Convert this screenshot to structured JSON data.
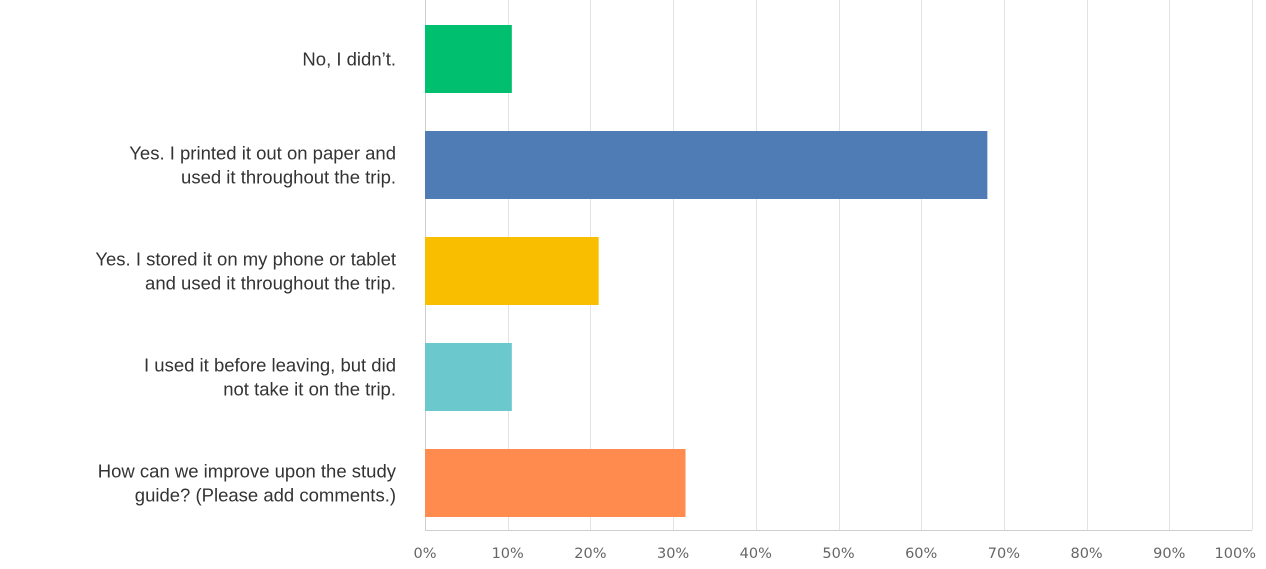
{
  "chart_data": {
    "type": "bar",
    "orientation": "horizontal",
    "categories": [
      [
        "No, I didn’t."
      ],
      [
        "Yes. I printed it out on paper and",
        "used it throughout the trip."
      ],
      [
        "Yes. I stored it on my phone or tablet",
        "and used it throughout the trip."
      ],
      [
        "I used it before leaving, but did",
        "not take it on the trip."
      ],
      [
        "How can we improve upon the study",
        "guide? (Please add comments.)"
      ]
    ],
    "values": [
      10.5,
      68,
      21,
      10.5,
      31.5
    ],
    "colors": [
      "#00bf6f",
      "#507cb6",
      "#f9be00",
      "#6bc8cd",
      "#ff8b4f"
    ],
    "xlim": [
      0,
      100
    ],
    "x_ticks": [
      "0%",
      "10%",
      "20%",
      "30%",
      "40%",
      "50%",
      "60%",
      "70%",
      "80%",
      "90%",
      "100%"
    ],
    "grid": true,
    "legend": "none",
    "title": "",
    "xlabel": "",
    "ylabel": ""
  }
}
